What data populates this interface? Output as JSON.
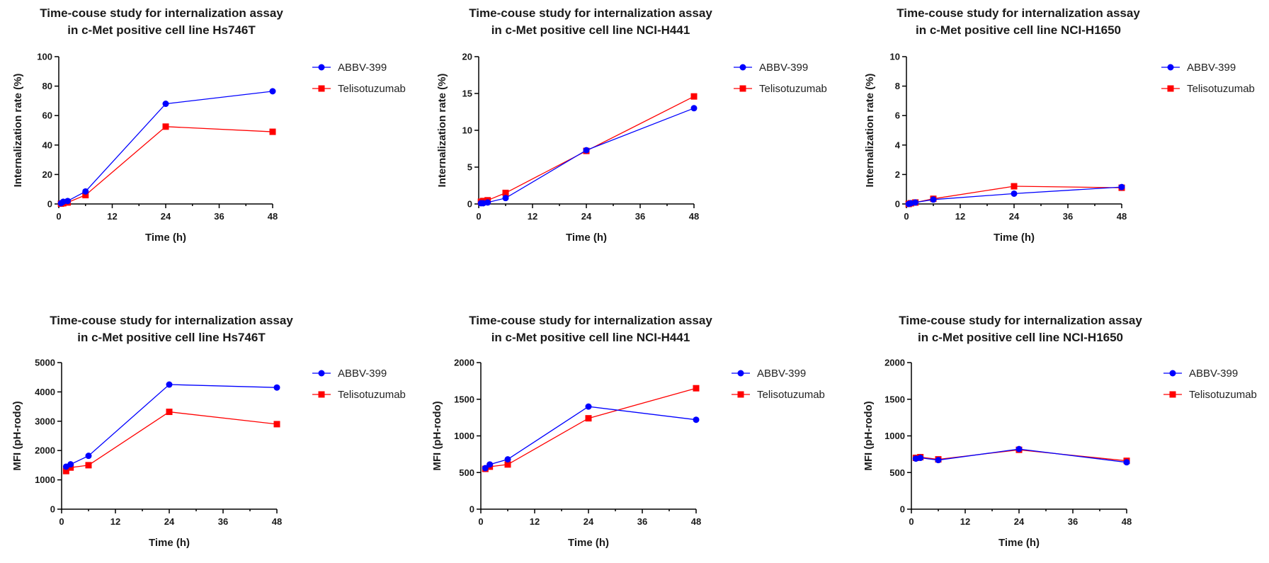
{
  "chart_data": [
    {
      "type": "line",
      "title": [
        "Time-couse study for internalization assay",
        "in c-Met positive cell line Hs746T"
      ],
      "xlabel": "Time (h)",
      "ylabel": "Internalization rate (%)",
      "xlim": [
        0,
        48
      ],
      "ylim": [
        0,
        100
      ],
      "xticks": [
        0,
        12,
        24,
        36,
        48
      ],
      "yticks": [
        0,
        20,
        40,
        60,
        80,
        100
      ],
      "legend": "right",
      "series": [
        {
          "name": "ABBV-399",
          "color": "#0000ff",
          "marker": "circle",
          "x": [
            0.5,
            1,
            2,
            6,
            24,
            48
          ],
          "y": [
            0.5,
            1.5,
            2,
            8.5,
            68,
            76.5
          ]
        },
        {
          "name": "Telisotuzumab",
          "color": "#ff0000",
          "marker": "square",
          "x": [
            0.5,
            1,
            2,
            6,
            24,
            48
          ],
          "y": [
            0.2,
            0.5,
            1,
            6,
            52.5,
            49
          ]
        }
      ]
    },
    {
      "type": "line",
      "title": [
        "Time-couse study for internalization assay",
        "in c-Met positive cell line NCI-H441"
      ],
      "xlabel": "Time (h)",
      "ylabel": "Internalization rate (%)",
      "xlim": [
        0,
        48
      ],
      "ylim": [
        0,
        20
      ],
      "xticks": [
        0,
        12,
        24,
        36,
        48
      ],
      "yticks": [
        0,
        5,
        10,
        15,
        20
      ],
      "legend": "right",
      "series": [
        {
          "name": "ABBV-399",
          "color": "#0000ff",
          "marker": "circle",
          "x": [
            0.5,
            1,
            2,
            6,
            24,
            48
          ],
          "y": [
            0.1,
            0.1,
            0.2,
            0.8,
            7.3,
            13
          ]
        },
        {
          "name": "Telisotuzumab",
          "color": "#ff0000",
          "marker": "square",
          "x": [
            0.5,
            1,
            2,
            6,
            24,
            48
          ],
          "y": [
            0.3,
            0.4,
            0.5,
            1.5,
            7.2,
            14.6
          ]
        }
      ]
    },
    {
      "type": "line",
      "title": [
        "Time-couse study for internalization assay",
        "in c-Met positive cell line NCI-H1650"
      ],
      "xlabel": "Time (h)",
      "ylabel": "Internalization rate (%)",
      "xlim": [
        0,
        48
      ],
      "ylim": [
        0,
        10
      ],
      "xticks": [
        0,
        12,
        24,
        36,
        48
      ],
      "yticks": [
        0,
        2,
        4,
        6,
        8,
        10
      ],
      "legend": "right",
      "series": [
        {
          "name": "ABBV-399",
          "color": "#0000ff",
          "marker": "circle",
          "x": [
            0.5,
            1,
            2,
            6,
            24,
            48
          ],
          "y": [
            0,
            0.05,
            0.1,
            0.3,
            0.7,
            1.15
          ]
        },
        {
          "name": "Telisotuzumab",
          "color": "#ff0000",
          "marker": "square",
          "x": [
            0.5,
            1,
            2,
            6,
            24,
            48
          ],
          "y": [
            0,
            0.05,
            0.1,
            0.35,
            1.2,
            1.1
          ]
        }
      ]
    },
    {
      "type": "line",
      "title": [
        "Time-couse study for internalization assay",
        "in c-Met positive cell line Hs746T"
      ],
      "xlabel": "Time (h)",
      "ylabel": "MFI (pH-rodo)",
      "xlim": [
        0,
        48
      ],
      "ylim": [
        0,
        5000
      ],
      "xticks": [
        0,
        12,
        24,
        36,
        48
      ],
      "yticks": [
        0,
        1000,
        2000,
        3000,
        4000,
        5000
      ],
      "legend": "right",
      "series": [
        {
          "name": "ABBV-399",
          "color": "#0000ff",
          "marker": "circle",
          "x": [
            1,
            2,
            6,
            24,
            48
          ],
          "y": [
            1450,
            1530,
            1820,
            4250,
            4150
          ]
        },
        {
          "name": "Telisotuzumab",
          "color": "#ff0000",
          "marker": "square",
          "x": [
            1,
            2,
            6,
            24,
            48
          ],
          "y": [
            1300,
            1420,
            1500,
            3320,
            2900
          ]
        }
      ]
    },
    {
      "type": "line",
      "title": [
        "Time-couse study for internalization assay",
        "in c-Met positive cell line NCI-H441"
      ],
      "xlabel": "Time (h)",
      "ylabel": "MFI (pH-rodo)",
      "xlim": [
        0,
        48
      ],
      "ylim": [
        0,
        2000
      ],
      "xticks": [
        0,
        12,
        24,
        36,
        48
      ],
      "yticks": [
        0,
        500,
        1000,
        1500,
        2000
      ],
      "legend": "right",
      "series": [
        {
          "name": "ABBV-399",
          "color": "#0000ff",
          "marker": "circle",
          "x": [
            1,
            2,
            6,
            24,
            48
          ],
          "y": [
            560,
            610,
            680,
            1400,
            1220
          ]
        },
        {
          "name": "Telisotuzumab",
          "color": "#ff0000",
          "marker": "square",
          "x": [
            1,
            2,
            6,
            24,
            48
          ],
          "y": [
            550,
            580,
            610,
            1240,
            1650
          ]
        }
      ]
    },
    {
      "type": "line",
      "title": [
        "Time-couse study for internalization assay",
        "in c-Met positive cell line NCI-H1650"
      ],
      "xlabel": "Time (h)",
      "ylabel": "MFI (pH-rodo)",
      "xlim": [
        0,
        48
      ],
      "ylim": [
        0,
        2000
      ],
      "xticks": [
        0,
        12,
        24,
        36,
        48
      ],
      "yticks": [
        0,
        500,
        1000,
        1500,
        2000
      ],
      "legend": "right",
      "series": [
        {
          "name": "ABBV-399",
          "color": "#0000ff",
          "marker": "circle",
          "x": [
            1,
            2,
            6,
            24,
            48
          ],
          "y": [
            690,
            700,
            670,
            820,
            640
          ]
        },
        {
          "name": "Telisotuzumab",
          "color": "#ff0000",
          "marker": "square",
          "x": [
            1,
            2,
            6,
            24,
            48
          ],
          "y": [
            700,
            710,
            680,
            810,
            660
          ]
        }
      ]
    }
  ]
}
